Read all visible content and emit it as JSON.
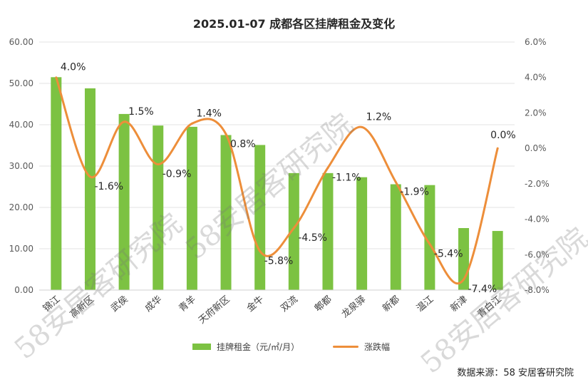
{
  "chart_data": {
    "type": "bar",
    "title": "2025.01-07 成都各区挂牌租金及变化",
    "categories": [
      "锦江",
      "高新区",
      "武侯",
      "成华",
      "青羊",
      "天府新区",
      "金牛",
      "双流",
      "郫都",
      "龙泉驿",
      "新都",
      "温江",
      "新津",
      "青白江"
    ],
    "series": [
      {
        "name": "挂牌租金（元/㎡/月）",
        "kind": "bar",
        "axis": "left",
        "color": "#7cc242",
        "values": [
          51.5,
          48.8,
          42.6,
          39.8,
          39.5,
          37.5,
          35.1,
          28.3,
          28.3,
          27.3,
          25.6,
          25.4,
          15.0,
          14.3
        ]
      },
      {
        "name": "涨跌幅",
        "kind": "line",
        "axis": "right",
        "color": "#ed8e3a",
        "values": [
          4.0,
          -1.6,
          1.5,
          -0.9,
          1.4,
          0.8,
          -5.8,
          -4.5,
          -1.1,
          1.2,
          -1.9,
          -5.4,
          -7.4,
          0.0
        ],
        "labels": [
          "4.0%",
          "-1.6%",
          "1.5%",
          "-0.9%",
          "1.4%",
          "0.8%",
          "-5.8%",
          "-4.5%",
          "-1.1%",
          "1.2%",
          "-1.9%",
          "-5.4%",
          "-7.4%",
          "0.0%"
        ]
      }
    ],
    "y_left": {
      "ylim": [
        0,
        60
      ],
      "ticks": [
        "0.00",
        "10.00",
        "20.00",
        "30.00",
        "40.00",
        "50.00",
        "60.00"
      ]
    },
    "y_right": {
      "ylim": [
        -8,
        6
      ],
      "ticks": [
        "-8.0%",
        "-6.0%",
        "-4.0%",
        "-2.0%",
        "0.0%",
        "2.0%",
        "4.0%",
        "6.0%"
      ]
    },
    "grid": true,
    "legend": "bottom"
  },
  "source_note": "数据来源：58 安居客研究院",
  "watermark": "58安居客研究院"
}
